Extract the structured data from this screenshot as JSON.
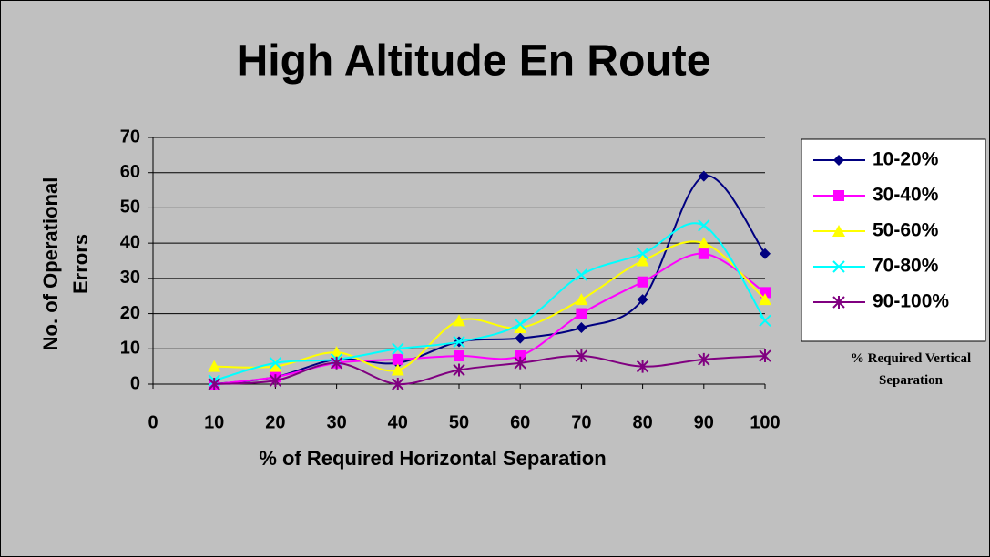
{
  "chart_data": {
    "type": "line",
    "title": "High Altitude En Route",
    "x_label": "% of Required Horizontal Separation",
    "y_label": "No. of Operational Errors",
    "legend_title": "% Required Vertical Separation",
    "legend": "right",
    "grid": true,
    "smooth": true,
    "x": [
      10,
      20,
      30,
      40,
      50,
      60,
      70,
      80,
      90,
      100
    ],
    "xlim": [
      0,
      100
    ],
    "xticks": [
      0,
      10,
      20,
      30,
      40,
      50,
      60,
      70,
      80,
      90,
      100
    ],
    "ylim": [
      0,
      70
    ],
    "yticks": [
      0,
      10,
      20,
      30,
      40,
      50,
      60,
      70
    ],
    "series": [
      {
        "name": "10-20%",
        "color": "#000080",
        "marker": "diamond",
        "values": [
          0,
          2,
          7,
          6,
          12,
          13,
          16,
          24,
          59,
          37
        ]
      },
      {
        "name": "30-40%",
        "color": "#ff00ff",
        "marker": "square",
        "values": [
          0,
          2,
          6,
          7,
          8,
          8,
          20,
          29,
          37,
          26
        ]
      },
      {
        "name": "50-60%",
        "color": "#ffff00",
        "marker": "triangle",
        "values": [
          5,
          5,
          9,
          4,
          18,
          16,
          24,
          35,
          40,
          24
        ]
      },
      {
        "name": "70-80%",
        "color": "#00ffff",
        "marker": "x",
        "values": [
          1,
          6,
          7,
          10,
          12,
          17,
          31,
          37,
          45,
          18
        ]
      },
      {
        "name": "90-100%",
        "color": "#800080",
        "marker": "star",
        "values": [
          0,
          1,
          6,
          0,
          4,
          6,
          8,
          5,
          7,
          8
        ]
      }
    ]
  }
}
